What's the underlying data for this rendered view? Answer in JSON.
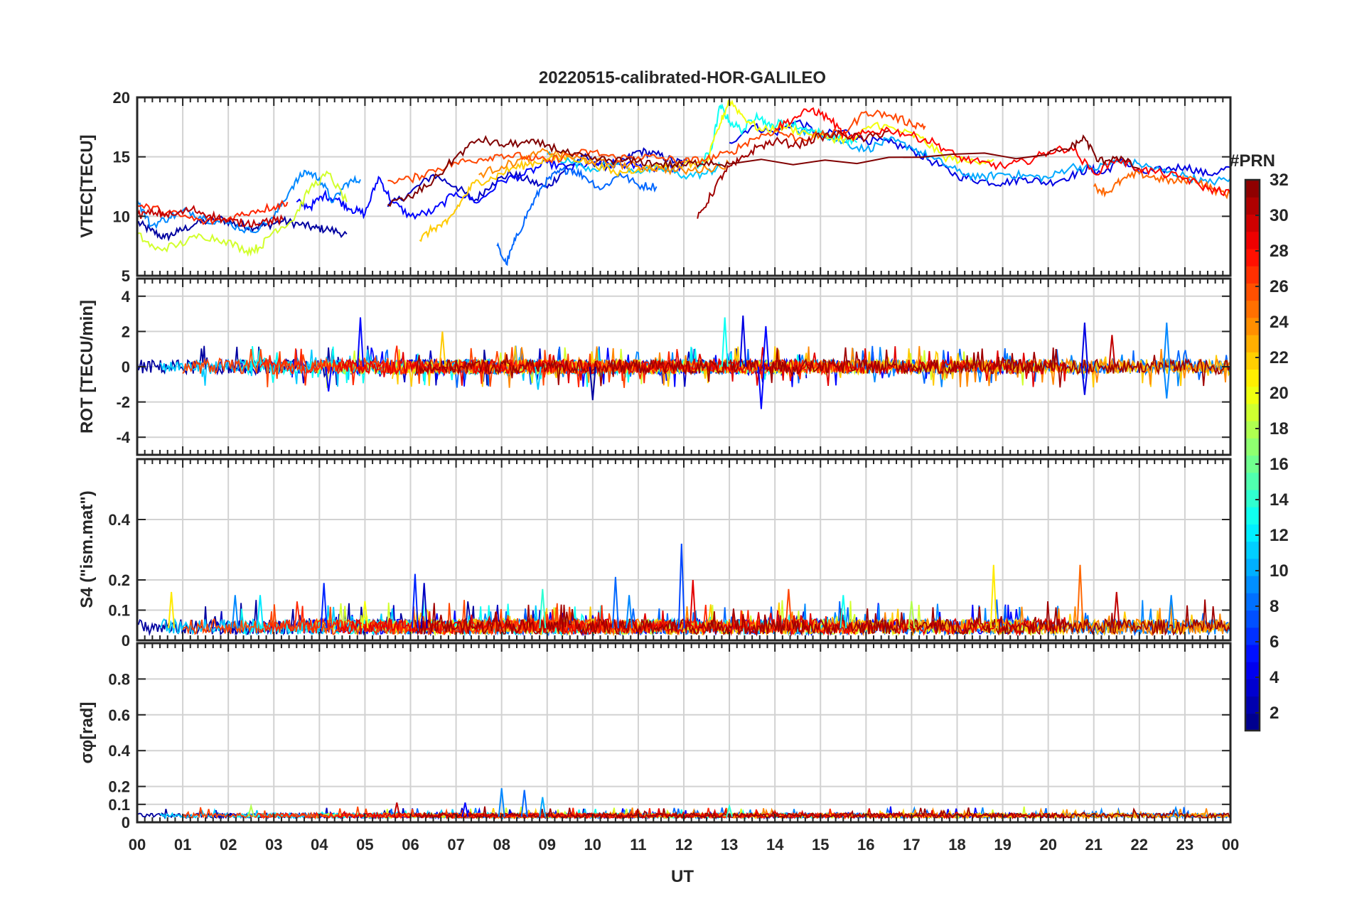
{
  "chart_data": {
    "type": "line",
    "title": "20220515-calibrated-HOR-GALILEO",
    "xlabel": "UT",
    "x_tick_labels": [
      "00",
      "01",
      "02",
      "03",
      "04",
      "05",
      "06",
      "07",
      "08",
      "09",
      "10",
      "11",
      "12",
      "13",
      "14",
      "15",
      "16",
      "17",
      "18",
      "19",
      "20",
      "21",
      "22",
      "23",
      "00"
    ],
    "xlim": [
      0,
      24
    ],
    "colorbar": {
      "label": "#PRN",
      "range": [
        1,
        32
      ],
      "tick_labels": [
        "2",
        "4",
        "6",
        "8",
        "10",
        "12",
        "14",
        "16",
        "18",
        "20",
        "22",
        "24",
        "26",
        "28",
        "30",
        "32"
      ],
      "colormap": "jet"
    },
    "panels": [
      {
        "name": "vtec",
        "ylabel": "VTEC[TECU]",
        "ylim": [
          5,
          20
        ],
        "ytick_labels": [
          "5",
          "10",
          "15",
          "20"
        ],
        "series": [
          {
            "prn": 2,
            "t": [
              0.0,
              0.3,
              0.6,
              0.9,
              1.3,
              1.8,
              2.2,
              2.5,
              2.8,
              3.2,
              3.6,
              3.9,
              4.2,
              4.6
            ],
            "v": [
              9.5,
              8.8,
              8.2,
              8.7,
              9.4,
              9.8,
              9.3,
              9.1,
              9.2,
              9.6,
              9.3,
              9.0,
              8.9,
              8.5
            ]
          },
          {
            "prn": 3,
            "t": [
              5.5,
              6.0,
              6.5,
              7.0,
              7.4,
              7.8,
              8.2,
              8.6,
              9.0,
              9.4,
              9.8,
              10.2,
              10.6,
              11.0,
              11.4,
              11.8,
              12.1
            ],
            "v": [
              10.8,
              12.0,
              13.5,
              12.5,
              11.3,
              12.8,
              13.6,
              13.0,
              12.4,
              14.0,
              15.0,
              14.2,
              14.4,
              15.5,
              15.2,
              14.6,
              14.5
            ]
          },
          {
            "prn": 4,
            "t": [
              13.0,
              13.5,
              14.0,
              14.5,
              15.0,
              15.5,
              16.0,
              16.5,
              17.0,
              17.5,
              18.0,
              18.5,
              19.0,
              19.5,
              20.0,
              20.5,
              20.9,
              21.2,
              21.6,
              22.0,
              22.5,
              23.0,
              23.5,
              24.0
            ],
            "v": [
              16.2,
              17.6,
              17.0,
              18.0,
              16.8,
              17.2,
              16.4,
              16.2,
              15.6,
              14.5,
              13.4,
              13.0,
              12.8,
              13.2,
              12.8,
              13.4,
              14.0,
              13.6,
              14.8,
              13.6,
              13.9,
              14.2,
              13.5,
              14.1
            ]
          },
          {
            "prn": 5,
            "t": [
              3.5,
              3.8,
              4.1,
              4.4,
              4.7,
              5.0,
              5.3,
              5.6,
              6.0,
              6.5,
              7.0,
              7.5,
              8.0,
              8.5,
              9.0,
              9.5,
              10.0,
              10.5,
              11.0,
              11.5,
              12.0
            ],
            "v": [
              11.2,
              10.8,
              11.8,
              11.4,
              10.6,
              10.2,
              13.3,
              11.2,
              10.0,
              10.4,
              12.0,
              11.2,
              13.0,
              13.5,
              14.5,
              14.0,
              14.5,
              14.4,
              14.2,
              14.0,
              14.2
            ]
          },
          {
            "prn": 8,
            "t": [
              7.9,
              8.1,
              8.3,
              8.6,
              8.9,
              9.2,
              9.5,
              9.8,
              10.2,
              10.6,
              11.0,
              11.4
            ],
            "v": [
              7.5,
              6.0,
              8.0,
              10.5,
              12.6,
              13.6,
              14.0,
              13.4,
              12.3,
              13.6,
              12.6,
              12.5
            ]
          },
          {
            "prn": 9,
            "t": [
              0.0,
              0.3,
              0.7,
              1.1,
              1.5,
              2.0,
              2.5,
              3.0,
              3.4,
              3.7,
              4.0,
              4.3,
              4.6,
              4.9
            ],
            "v": [
              11.4,
              9.2,
              9.9,
              10.5,
              9.8,
              9.4,
              8.7,
              9.9,
              12.5,
              13.8,
              13.2,
              11.2,
              12.8,
              13.1
            ]
          },
          {
            "prn": 10,
            "t": [
              14.5,
              15.0,
              15.5,
              16.0,
              16.5,
              17.0,
              17.5,
              18.0,
              18.5,
              19.0,
              19.5,
              20.0,
              20.5,
              21.0,
              21.5,
              22.0,
              22.5,
              23.0,
              23.5,
              24.0
            ],
            "v": [
              17.2,
              17.0,
              16.2,
              15.6,
              16.4,
              15.8,
              14.8,
              13.8,
              13.2,
              13.6,
              13.4,
              13.2,
              14.2,
              14.0,
              14.6,
              14.4,
              13.8,
              13.4,
              12.8,
              13.2
            ]
          },
          {
            "prn": 11,
            "t": [
              9.0,
              9.5,
              10.0,
              10.5,
              11.0,
              11.5,
              12.0,
              12.5,
              12.8
            ],
            "v": [
              15.2,
              14.6,
              14.0,
              14.4,
              13.8,
              14.0,
              13.4,
              13.6,
              14.2
            ]
          },
          {
            "prn": 13,
            "t": [
              12.3,
              12.6,
              12.8,
              13.0,
              13.3,
              13.6,
              13.9,
              14.2,
              14.6,
              15.0,
              15.4,
              15.8
            ],
            "v": [
              14.0,
              15.6,
              19.3,
              18.0,
              17.2,
              18.6,
              17.5,
              18.0,
              17.4,
              17.0,
              16.6,
              16.2
            ]
          },
          {
            "prn": 19,
            "t": [
              0.0,
              0.4,
              0.9,
              1.4,
              1.9,
              2.4,
              2.7,
              3.0,
              3.4,
              3.8,
              4.2,
              4.6
            ],
            "v": [
              8.5,
              7.2,
              7.6,
              8.4,
              8.0,
              7.1,
              7.4,
              8.8,
              9.6,
              12.4,
              13.6,
              11.2
            ]
          },
          {
            "prn": 20,
            "t": [
              12.5,
              12.8,
              13.0,
              13.3,
              13.7,
              14.2,
              14.7,
              15.2,
              15.7,
              16.2,
              16.7,
              17.2,
              17.7,
              18.2,
              18.8
            ],
            "v": [
              14.5,
              17.8,
              19.8,
              18.4,
              17.2,
              17.5,
              17.0,
              16.6,
              16.4,
              17.8,
              17.2,
              16.6,
              15.0,
              14.6,
              14.8
            ]
          },
          {
            "prn": 22,
            "t": [
              6.2,
              6.5,
              6.8,
              7.1,
              7.4,
              7.8,
              8.2,
              8.6,
              9.0,
              9.5,
              10.0,
              10.5,
              11.0,
              11.5,
              12.0,
              12.5
            ],
            "v": [
              8.0,
              9.0,
              9.4,
              11.2,
              12.8,
              13.2,
              14.0,
              14.4,
              14.8,
              15.0,
              14.5,
              13.6,
              14.0,
              14.2,
              14.4,
              14.6
            ]
          },
          {
            "prn": 24,
            "t": [
              7.5,
              8.0,
              8.5,
              9.0,
              9.5,
              10.0,
              10.5,
              11.0,
              11.5,
              12.0,
              12.5,
              13.0
            ],
            "v": [
              13.5,
              14.2,
              14.8,
              15.5,
              15.0,
              14.6,
              14.4,
              14.2,
              14.0,
              13.8,
              14.0,
              14.4
            ]
          },
          {
            "prn": 25,
            "t": [
              21.0,
              21.3,
              21.6,
              22.0,
              22.4,
              22.8,
              23.2,
              23.6,
              24.0
            ],
            "v": [
              12.5,
              12.0,
              13.0,
              13.6,
              13.2,
              12.9,
              13.2,
              12.3,
              11.8
            ]
          },
          {
            "prn": 26,
            "t": [
              5.5,
              6.0,
              6.5,
              7.0,
              7.5,
              8.0,
              8.5,
              9.0,
              9.5,
              10.0,
              10.5,
              11.0,
              11.5,
              12.0,
              12.5,
              13.0,
              13.5,
              14.0,
              14.5,
              15.0,
              15.5,
              16.0,
              16.5,
              17.0,
              17.3
            ],
            "v": [
              13.0,
              13.1,
              13.9,
              14.5,
              14.8,
              15.2,
              15.0,
              14.6,
              15.2,
              15.4,
              14.9,
              15.0,
              14.9,
              14.6,
              14.8,
              15.3,
              16.5,
              17.2,
              16.5,
              16.8,
              17.0,
              18.8,
              18.5,
              17.8,
              17.6
            ]
          },
          {
            "prn": 27,
            "t": [
              0.0,
              0.5,
              1.0,
              1.5,
              2.0,
              2.5,
              3.0,
              3.3
            ],
            "v": [
              10.9,
              10.5,
              10.0,
              9.5,
              9.8,
              10.4,
              10.8,
              11.2
            ]
          },
          {
            "prn": 28,
            "t": [
              14.0,
              14.4,
              14.8,
              15.2,
              15.6,
              16.0,
              16.5,
              17.0,
              17.5,
              18.0,
              18.5,
              19.0,
              19.5,
              20.0,
              20.5,
              21.0,
              21.5,
              22.0,
              22.5,
              23.0,
              23.5,
              24.0
            ],
            "v": [
              17.4,
              18.2,
              19.0,
              18.2,
              16.5,
              17.0,
              17.3,
              16.8,
              16.2,
              15.0,
              14.5,
              14.2,
              14.6,
              15.4,
              15.8,
              13.6,
              14.8,
              14.0,
              13.6,
              13.2,
              12.3,
              12.0
            ]
          },
          {
            "prn": 30,
            "t": [
              0.0,
              0.4,
              0.8,
              1.2,
              1.6,
              2.0,
              2.4,
              2.8,
              3.2
            ],
            "v": [
              10.1,
              10.3,
              10.1,
              10.6,
              10.1,
              9.6,
              9.4,
              9.6,
              9.7
            ]
          },
          {
            "prn": 31,
            "t": [
              12.3,
              12.6,
              12.9,
              13.2,
              13.6,
              14.0,
              14.5,
              15.0,
              15.5,
              16.0,
              16.5
            ],
            "v": [
              9.8,
              11.8,
              13.8,
              14.6,
              15.8,
              16.3,
              16.0,
              16.7,
              16.9,
              16.5,
              17.2
            ]
          },
          {
            "prn": 32,
            "t": [
              5.5,
              6.0,
              6.5,
              7.0,
              7.5,
              8.0,
              8.5,
              9.0,
              9.5,
              10.0,
              10.5,
              11.0,
              11.5,
              12.0,
              12.5,
              13.0,
              20.0,
              20.5,
              20.8,
              21.1,
              21.5,
              22.0
            ],
            "v": [
              11.0,
              11.6,
              13.0,
              15.0,
              16.5,
              16.0,
              16.2,
              16.0,
              15.2,
              14.8,
              14.7,
              14.6,
              14.4,
              14.3,
              14.6,
              14.4,
              15.2,
              15.8,
              16.6,
              14.6,
              15.0,
              14.0
            ]
          }
        ]
      },
      {
        "name": "rot",
        "ylabel": "ROT [TECU/min]",
        "ylim": [
          -5,
          5
        ],
        "ytick_labels": [
          "-4",
          "-2",
          "0",
          "2",
          "4"
        ],
        "spikes": [
          {
            "prn": 5,
            "t": 4.9,
            "v": 2.8
          },
          {
            "prn": 5,
            "t": 4.2,
            "v": -1.4
          },
          {
            "prn": 22,
            "t": 6.7,
            "v": 2.0
          },
          {
            "prn": 13,
            "t": 12.9,
            "v": 2.8
          },
          {
            "prn": 4,
            "t": 13.3,
            "v": 2.9
          },
          {
            "prn": 5,
            "t": 13.8,
            "v": 2.3
          },
          {
            "prn": 5,
            "t": 13.7,
            "v": -2.4
          },
          {
            "prn": 2,
            "t": 10.0,
            "v": -1.9
          },
          {
            "prn": 4,
            "t": 20.8,
            "v": 2.5
          },
          {
            "prn": 30,
            "t": 21.4,
            "v": 1.8
          },
          {
            "prn": 9,
            "t": 22.6,
            "v": 2.5
          },
          {
            "prn": 9,
            "t": 22.6,
            "v": -1.8
          },
          {
            "prn": 4,
            "t": 20.8,
            "v": -1.6
          },
          {
            "prn": 11,
            "t": 8.8,
            "v": -1.3
          }
        ]
      },
      {
        "name": "s4",
        "ylabel": "S4 (\"ism.mat\")",
        "ylim": [
          0,
          0.6
        ],
        "ytick_labels": [
          "0",
          "0.1",
          "0.2",
          "0.4"
        ],
        "spikes": [
          {
            "prn": 21,
            "t": 0.75,
            "v": 0.16
          },
          {
            "prn": 9,
            "t": 2.15,
            "v": 0.15
          },
          {
            "prn": 12,
            "t": 2.7,
            "v": 0.15
          },
          {
            "prn": 6,
            "t": 4.1,
            "v": 0.19
          },
          {
            "prn": 20,
            "t": 5.0,
            "v": 0.13
          },
          {
            "prn": 6,
            "t": 6.1,
            "v": 0.22
          },
          {
            "prn": 3,
            "t": 6.3,
            "v": 0.19
          },
          {
            "prn": 14,
            "t": 8.9,
            "v": 0.17
          },
          {
            "prn": 8,
            "t": 10.5,
            "v": 0.21
          },
          {
            "prn": 9,
            "t": 10.8,
            "v": 0.15
          },
          {
            "prn": 7,
            "t": 11.95,
            "v": 0.32
          },
          {
            "prn": 29,
            "t": 12.2,
            "v": 0.2
          },
          {
            "prn": 26,
            "t": 14.3,
            "v": 0.17
          },
          {
            "prn": 13,
            "t": 15.5,
            "v": 0.15
          },
          {
            "prn": 18,
            "t": 17.0,
            "v": 0.13
          },
          {
            "prn": 21,
            "t": 18.8,
            "v": 0.25
          },
          {
            "prn": 25,
            "t": 20.7,
            "v": 0.25
          },
          {
            "prn": 30,
            "t": 21.5,
            "v": 0.16
          },
          {
            "prn": 9,
            "t": 22.7,
            "v": 0.15
          }
        ]
      },
      {
        "name": "sigma",
        "ylabel": "σφ[rad]",
        "ylim": [
          0,
          1.0
        ],
        "ytick_labels": [
          "0",
          "0.1",
          "0.2",
          "0.4",
          "0.6",
          "0.8"
        ],
        "spikes": [
          {
            "prn": 9,
            "t": 8.0,
            "v": 0.19
          },
          {
            "prn": 8,
            "t": 8.5,
            "v": 0.18
          },
          {
            "prn": 10,
            "t": 8.9,
            "v": 0.14
          },
          {
            "prn": 5,
            "t": 7.2,
            "v": 0.11
          },
          {
            "prn": 30,
            "t": 5.7,
            "v": 0.11
          },
          {
            "prn": 18,
            "t": 2.5,
            "v": 0.09
          },
          {
            "prn": 14,
            "t": 13.0,
            "v": 0.09
          },
          {
            "prn": 9,
            "t": 22.8,
            "v": 0.08
          }
        ]
      }
    ]
  }
}
